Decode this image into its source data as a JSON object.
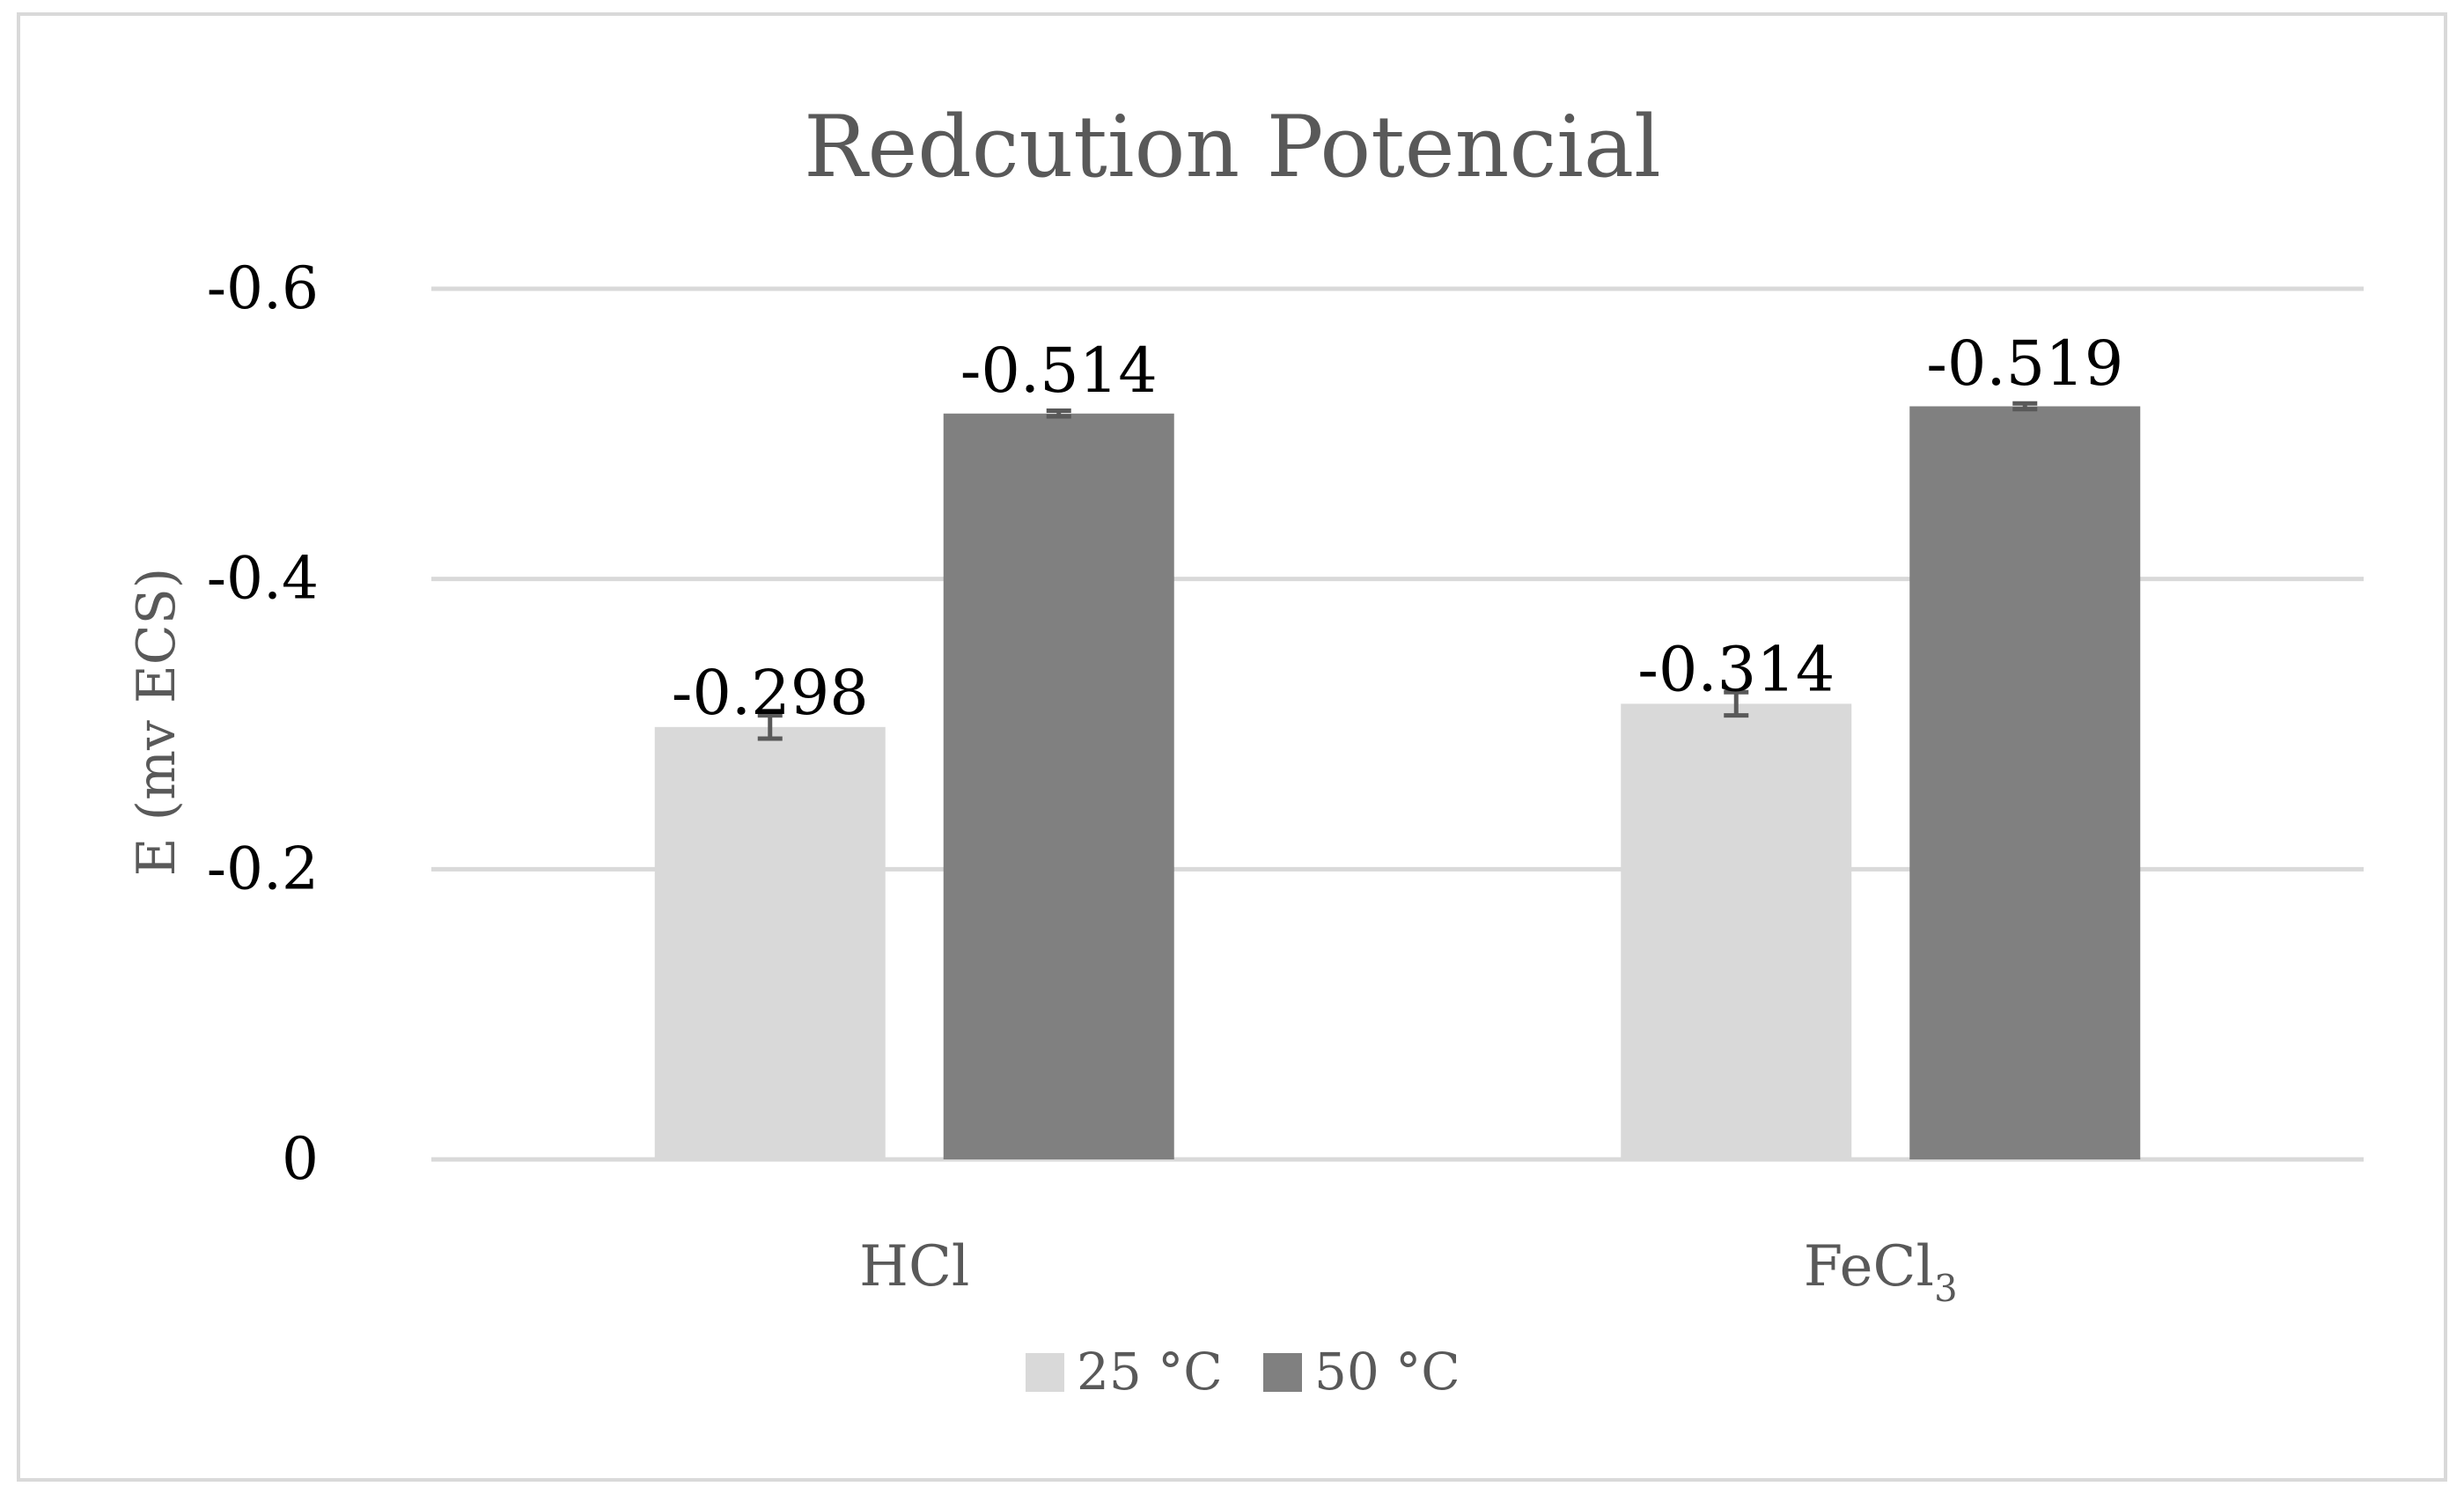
{
  "chart_data": {
    "type": "bar",
    "title": "Redcution Potencial",
    "ylabel": "E (mv ECS)",
    "xlabel": "",
    "categories": [
      {
        "base": "HCl",
        "sub": ""
      },
      {
        "base": "FeCl",
        "sub": "3"
      }
    ],
    "ylim": [
      0,
      -0.6
    ],
    "yticks": [
      {
        "value": 0,
        "label": "0"
      },
      {
        "value": -0.2,
        "label": "-0.2"
      },
      {
        "value": -0.4,
        "label": "-0.4"
      },
      {
        "value": -0.6,
        "label": "-0.6"
      }
    ],
    "series": [
      {
        "name": "25 °C",
        "color": "#d9d9d9",
        "values": [
          -0.298,
          -0.314
        ],
        "labels": [
          "-0.298",
          "-0.314"
        ],
        "error": [
          0.008,
          0.008
        ]
      },
      {
        "name": "50 °C",
        "color": "#808080",
        "values": [
          -0.514,
          -0.519
        ],
        "labels": [
          "-0.514",
          "-0.519"
        ],
        "error": [
          0.002,
          0.002
        ]
      }
    ],
    "grid": true,
    "legend": "bottom-center",
    "colors": {
      "grid": "#d9d9d9",
      "frame": "#d9d9d9",
      "errorbar": "#595959"
    }
  }
}
